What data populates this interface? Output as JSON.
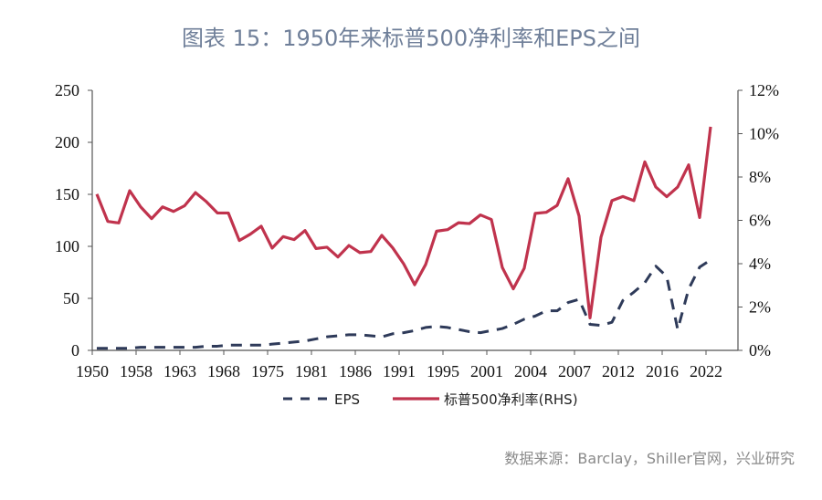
{
  "title": "图表 15：1950年来标普500净利率和EPS之间",
  "source": "数据来源：Barclay，Shiller官网，兴业研究",
  "chart_data": {
    "type": "line",
    "title": "图表 15：1950年来标普500净利率和EPS之间",
    "x_tick_labels": [
      "1950",
      "1958",
      "1963",
      "1968",
      "1975",
      "1981",
      "1986",
      "1991",
      "1995",
      "2001",
      "2004",
      "2007",
      "2012",
      "2016",
      "2022"
    ],
    "y_left": {
      "range": [
        0,
        250
      ],
      "ticks": [
        "0",
        "50",
        "100",
        "150",
        "200",
        "250"
      ]
    },
    "y_right": {
      "range": [
        0,
        12
      ],
      "ticks": [
        "0%",
        "2%",
        "4%",
        "6%",
        "8%",
        "10%",
        "12%"
      ],
      "unit": "%"
    },
    "grid": false,
    "legend_position": "bottom",
    "series": [
      {
        "name": "EPS",
        "axis": "left",
        "style": "dashed",
        "color": "#2e3a59",
        "values": [
          2,
          2,
          2,
          2,
          3,
          3,
          3,
          3,
          3,
          3,
          4,
          4,
          5,
          5,
          5,
          5,
          6,
          7,
          8,
          9,
          11,
          13,
          14,
          15,
          15,
          14,
          13,
          16,
          17,
          19,
          22,
          23,
          22,
          20,
          18,
          17,
          19,
          21,
          25,
          30,
          33,
          38,
          38,
          46,
          49,
          25,
          24,
          27,
          48,
          56,
          65,
          81,
          71,
          20,
          59,
          80,
          87
        ]
      },
      {
        "name": "标普500净利率(RHS)",
        "axis": "right",
        "style": "solid",
        "color": "#c0334d",
        "values": [
          7.21,
          5.95,
          5.88,
          7.37,
          6.62,
          6.08,
          6.62,
          6.41,
          6.67,
          7.28,
          6.86,
          6.34,
          6.34,
          5.07,
          5.36,
          5.73,
          4.72,
          5.25,
          5.11,
          5.53,
          4.7,
          4.76,
          4.31,
          4.84,
          4.51,
          4.56,
          5.31,
          4.73,
          3.99,
          3.03,
          3.96,
          5.5,
          5.57,
          5.89,
          5.85,
          6.25,
          6.04,
          3.82,
          2.84,
          3.79,
          6.32,
          6.37,
          6.69,
          7.92,
          6.2,
          1.5,
          5.22,
          6.91,
          7.1,
          6.91,
          8.7,
          7.54,
          7.09,
          7.54,
          8.56,
          6.13,
          10.32
        ]
      }
    ]
  }
}
